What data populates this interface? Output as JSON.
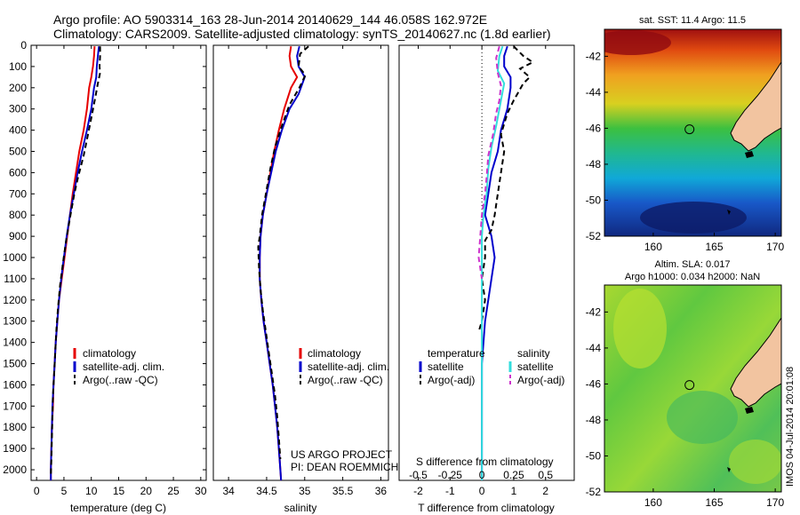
{
  "header": {
    "line1": "Argo profile: AO 5903314_163 28-Jun-2014 20140629_144 46.058S 162.972E",
    "line2": "Climatology: CARS2009. Satellite-adjusted climatology: synTS_20140627.nc (1.8d earlier)"
  },
  "project": {
    "line1": "US ARGO PROJECT",
    "line2": "PI: DEAN ROEMMICH"
  },
  "watermark": "IMOS 04-Jul-2014 20:01:08",
  "colors": {
    "climatology": "#e60000",
    "satellite": "#0000cc",
    "argo": "#000000",
    "satellite_salinity": "#33dddd",
    "argo_salinity": "#cc33cc"
  },
  "chart_data": [
    {
      "type": "line",
      "panel": "temperature",
      "xlabel": "temperature (deg C)",
      "ylim": [
        2050,
        0
      ],
      "xlim": [
        -1,
        31
      ],
      "xticks": [
        0,
        5,
        10,
        15,
        20,
        25,
        30
      ],
      "yticks": [
        0,
        100,
        200,
        300,
        400,
        500,
        600,
        700,
        800,
        900,
        1000,
        1100,
        1200,
        1300,
        1400,
        1500,
        1600,
        1700,
        1800,
        1900,
        2000
      ],
      "legend": [
        "climatology",
        "satellite-adj. clim.",
        "Argo(..raw -QC)"
      ],
      "series": [
        {
          "name": "climatology",
          "style": "solid",
          "color": "#e60000",
          "points": [
            [
              10.6,
              5
            ],
            [
              10.5,
              50
            ],
            [
              10.3,
              100
            ],
            [
              10.0,
              150
            ],
            [
              9.6,
              200
            ],
            [
              9.2,
              300
            ],
            [
              8.6,
              400
            ],
            [
              7.8,
              500
            ],
            [
              7.2,
              600
            ],
            [
              6.6,
              700
            ],
            [
              6.1,
              800
            ],
            [
              5.6,
              900
            ],
            [
              5.1,
              1000
            ],
            [
              4.6,
              1100
            ],
            [
              4.1,
              1200
            ],
            [
              3.8,
              1300
            ],
            [
              3.5,
              1400
            ],
            [
              3.3,
              1500
            ],
            [
              3.1,
              1600
            ],
            [
              3.0,
              1700
            ],
            [
              2.8,
              1800
            ],
            [
              2.7,
              1900
            ],
            [
              2.6,
              2000
            ],
            [
              2.6,
              2050
            ]
          ]
        },
        {
          "name": "satellite-adj. clim.",
          "style": "solid",
          "color": "#0000cc",
          "points": [
            [
              11.4,
              5
            ],
            [
              11.2,
              50
            ],
            [
              11.0,
              100
            ],
            [
              10.9,
              150
            ],
            [
              10.5,
              200
            ],
            [
              10.0,
              300
            ],
            [
              9.2,
              400
            ],
            [
              8.3,
              500
            ],
            [
              7.5,
              600
            ],
            [
              6.8,
              700
            ],
            [
              6.1,
              800
            ],
            [
              5.5,
              900
            ],
            [
              5.0,
              1000
            ],
            [
              4.5,
              1100
            ],
            [
              4.1,
              1200
            ],
            [
              3.8,
              1300
            ],
            [
              3.5,
              1400
            ],
            [
              3.3,
              1500
            ],
            [
              3.1,
              1600
            ],
            [
              2.9,
              1700
            ],
            [
              2.8,
              1800
            ],
            [
              2.7,
              1900
            ],
            [
              2.6,
              2000
            ],
            [
              2.6,
              2050
            ]
          ]
        },
        {
          "name": "Argo(..raw -QC)",
          "style": "dashed",
          "color": "#000000",
          "points": [
            [
              11.6,
              5
            ],
            [
              11.6,
              50
            ],
            [
              11.5,
              100
            ],
            [
              11.6,
              130
            ],
            [
              11.2,
              180
            ],
            [
              10.7,
              250
            ],
            [
              10.1,
              330
            ],
            [
              9.4,
              420
            ],
            [
              8.6,
              520
            ],
            [
              7.6,
              620
            ],
            [
              6.9,
              700
            ],
            [
              6.2,
              800
            ],
            [
              5.4,
              920
            ],
            [
              4.8,
              1030
            ],
            [
              4.3,
              1130
            ],
            [
              3.9,
              1240
            ],
            [
              3.6,
              1350
            ],
            [
              3.4,
              1450
            ],
            [
              3.2,
              1550
            ],
            [
              3.0,
              1650
            ],
            [
              2.9,
              1750
            ],
            [
              2.8,
              1850
            ],
            [
              2.7,
              1950
            ],
            [
              2.6,
              2030
            ]
          ]
        }
      ]
    },
    {
      "type": "line",
      "panel": "salinity",
      "xlabel": "salinity",
      "ylim": [
        2050,
        0
      ],
      "xlim": [
        33.8,
        36.1
      ],
      "xticks": [
        34,
        34.5,
        35,
        35.5,
        36
      ],
      "legend": [
        "climatology",
        "satellite-adj. clim.",
        "Argo(..raw -QC)"
      ],
      "series": [
        {
          "name": "climatology",
          "style": "solid",
          "color": "#e60000",
          "points": [
            [
              34.82,
              5
            ],
            [
              34.8,
              50
            ],
            [
              34.82,
              100
            ],
            [
              34.9,
              150
            ],
            [
              34.82,
              200
            ],
            [
              34.73,
              300
            ],
            [
              34.66,
              400
            ],
            [
              34.6,
              500
            ],
            [
              34.55,
              600
            ],
            [
              34.5,
              700
            ],
            [
              34.45,
              800
            ],
            [
              34.42,
              900
            ],
            [
              34.41,
              1000
            ],
            [
              34.41,
              1100
            ],
            [
              34.43,
              1200
            ],
            [
              34.46,
              1300
            ],
            [
              34.5,
              1400
            ],
            [
              34.54,
              1500
            ],
            [
              34.58,
              1600
            ],
            [
              34.61,
              1700
            ],
            [
              34.64,
              1800
            ],
            [
              34.66,
              1900
            ],
            [
              34.68,
              2000
            ],
            [
              34.69,
              2050
            ]
          ]
        },
        {
          "name": "satellite-adj. clim.",
          "style": "solid",
          "color": "#0000cc",
          "points": [
            [
              34.93,
              5
            ],
            [
              34.9,
              50
            ],
            [
              34.92,
              100
            ],
            [
              35.0,
              150
            ],
            [
              34.92,
              230
            ],
            [
              34.8,
              300
            ],
            [
              34.7,
              400
            ],
            [
              34.62,
              500
            ],
            [
              34.56,
              600
            ],
            [
              34.5,
              700
            ],
            [
              34.45,
              800
            ],
            [
              34.42,
              900
            ],
            [
              34.41,
              1000
            ],
            [
              34.41,
              1100
            ],
            [
              34.43,
              1200
            ],
            [
              34.46,
              1300
            ],
            [
              34.5,
              1400
            ],
            [
              34.54,
              1500
            ],
            [
              34.58,
              1600
            ],
            [
              34.61,
              1700
            ],
            [
              34.64,
              1800
            ],
            [
              34.66,
              1900
            ],
            [
              34.68,
              2000
            ],
            [
              34.69,
              2050
            ]
          ]
        },
        {
          "name": "Argo(..raw -QC)",
          "style": "dashed",
          "color": "#000000",
          "points": [
            [
              35.05,
              5
            ],
            [
              34.94,
              40
            ],
            [
              34.92,
              100
            ],
            [
              35.01,
              140
            ],
            [
              34.93,
              200
            ],
            [
              34.8,
              280
            ],
            [
              34.7,
              380
            ],
            [
              34.61,
              480
            ],
            [
              34.55,
              580
            ],
            [
              34.49,
              700
            ],
            [
              34.44,
              800
            ],
            [
              34.41,
              900
            ],
            [
              34.39,
              950
            ],
            [
              34.4,
              1050
            ],
            [
              34.42,
              1150
            ],
            [
              34.45,
              1250
            ],
            [
              34.49,
              1350
            ],
            [
              34.53,
              1450
            ],
            [
              34.57,
              1550
            ],
            [
              34.61,
              1650
            ],
            [
              34.64,
              1750
            ],
            [
              34.66,
              1850
            ],
            [
              34.68,
              1950
            ]
          ]
        }
      ]
    },
    {
      "type": "line",
      "panel": "difference",
      "xlabel": "T difference from climatology",
      "xlabel2": "S difference from climatology",
      "ylim": [
        2050,
        0
      ],
      "xlim": [
        -2.6,
        2.9
      ],
      "xticks": [
        -2,
        -1,
        0,
        1,
        2
      ],
      "xticks_top": [
        -0.5,
        -0.25,
        0,
        0.25,
        0.5
      ],
      "legend_headers": [
        "temperature",
        "salinity"
      ],
      "legend": [
        "satellite",
        "Argo(-adj)",
        "satellite",
        "Argo(-adj)"
      ],
      "series": [
        {
          "name": "temperature satellite",
          "style": "solid",
          "color": "#0000cc",
          "points": [
            [
              0.8,
              5
            ],
            [
              0.7,
              50
            ],
            [
              0.7,
              100
            ],
            [
              0.9,
              150
            ],
            [
              0.9,
              200
            ],
            [
              0.8,
              300
            ],
            [
              0.6,
              400
            ],
            [
              0.5,
              500
            ],
            [
              0.3,
              600
            ],
            [
              0.2,
              700
            ],
            [
              0.1,
              800
            ],
            [
              0.2,
              850
            ],
            [
              0.3,
              900
            ],
            [
              0.4,
              1000
            ],
            [
              0.3,
              1100
            ],
            [
              0.2,
              1200
            ],
            [
              0.1,
              1300
            ],
            [
              0.05,
              1400
            ],
            [
              0,
              1500
            ],
            [
              0,
              1600
            ],
            [
              0,
              1700
            ],
            [
              0,
              1800
            ],
            [
              0,
              1900
            ],
            [
              0,
              2000
            ],
            [
              0,
              2050
            ]
          ]
        },
        {
          "name": "temperature Argo(-adj)",
          "style": "dashed",
          "color": "#000000",
          "points": [
            [
              1.0,
              5
            ],
            [
              1.3,
              50
            ],
            [
              1.6,
              80
            ],
            [
              1.2,
              110
            ],
            [
              1.5,
              150
            ],
            [
              1.3,
              180
            ],
            [
              1.0,
              260
            ],
            [
              0.8,
              320
            ],
            [
              0.6,
              420
            ],
            [
              0.7,
              500
            ],
            [
              0.6,
              600
            ],
            [
              0.5,
              700
            ],
            [
              0.4,
              800
            ],
            [
              0.3,
              870
            ],
            [
              0.1,
              920
            ],
            [
              0.1,
              1000
            ],
            [
              0,
              1100
            ],
            [
              0.1,
              1200
            ],
            [
              0,
              1300
            ],
            [
              -0.1,
              1350
            ]
          ]
        },
        {
          "name": "salinity satellite",
          "style": "solid",
          "color": "#33dddd",
          "points": [
            [
              0.65,
              5
            ],
            [
              0.55,
              50
            ],
            [
              0.5,
              120
            ],
            [
              0.7,
              180
            ],
            [
              0.6,
              260
            ],
            [
              0.55,
              300
            ],
            [
              0.45,
              380
            ],
            [
              0.3,
              480
            ],
            [
              0.2,
              580
            ],
            [
              0.15,
              700
            ],
            [
              0.05,
              800
            ],
            [
              0,
              900
            ],
            [
              0,
              1000
            ],
            [
              0,
              1100
            ],
            [
              0,
              1200
            ],
            [
              0,
              1300
            ],
            [
              0,
              1500
            ],
            [
              0,
              1700
            ],
            [
              0,
              1900
            ],
            [
              0,
              2050
            ]
          ]
        },
        {
          "name": "salinity Argo(-adj)",
          "style": "dashed",
          "color": "#cc33cc",
          "points": [
            [
              0.55,
              5
            ],
            [
              0.45,
              60
            ],
            [
              0.5,
              130
            ],
            [
              0.6,
              190
            ],
            [
              0.55,
              260
            ],
            [
              0.45,
              320
            ],
            [
              0.35,
              420
            ],
            [
              0.2,
              520
            ],
            [
              0.15,
              620
            ],
            [
              0.1,
              700
            ],
            [
              0,
              800
            ],
            [
              -0.05,
              900
            ],
            [
              -0.1,
              1000
            ],
            [
              0,
              1100
            ]
          ]
        }
      ]
    },
    {
      "type": "heatmap",
      "panel": "sst_map",
      "title": "sat. SST: 11.4 Argo: 11.5",
      "xticks": [
        160,
        165,
        170
      ],
      "yticks": [
        -42,
        -44,
        -46,
        -48,
        -50,
        -52
      ],
      "xlim": [
        156,
        170.5
      ],
      "ylim": [
        -52,
        -40.5
      ],
      "argo_position": [
        162.972,
        -46.058
      ]
    },
    {
      "type": "heatmap",
      "panel": "sla_map",
      "title": "Altim. SLA: 0.017",
      "subtitle": "Argo h1000: 0.034 h2000: NaN",
      "xticks": [
        160,
        165,
        170
      ],
      "yticks": [
        -42,
        -44,
        -46,
        -48,
        -50,
        -52
      ],
      "xlim": [
        156,
        170.5
      ],
      "ylim": [
        -52,
        -40.5
      ],
      "argo_position": [
        162.972,
        -46.058
      ]
    }
  ]
}
